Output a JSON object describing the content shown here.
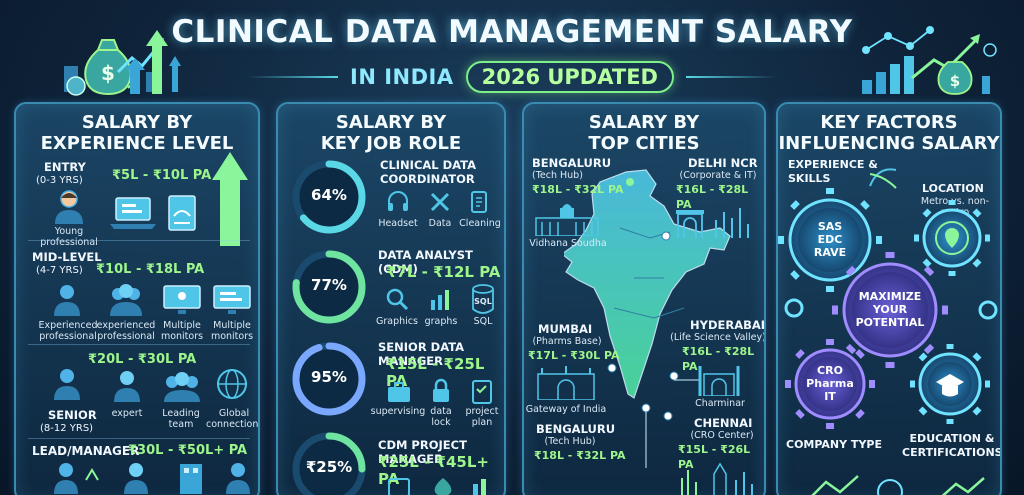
{
  "header": {
    "title": "CLINICAL DATA MANAGEMENT SALARY",
    "subtitle_left": "IN INDIA",
    "subtitle_badge": "2026 UPDATED"
  },
  "experience": {
    "title_line1": "SALARY BY",
    "title_line2": "EXPERIENCE LEVEL",
    "entry": {
      "label": "ENTRY",
      "years": "(0-3 YRS)",
      "salary": "₹5L - ₹10L PA",
      "icon_caption_1": "Young",
      "icon_caption_2": "professional"
    },
    "mid": {
      "label": "MID-LEVEL",
      "years": "(4-7 YRS)",
      "salary": "₹10L - ₹18L PA",
      "captions": [
        {
          "l1": "Experienced",
          "l2": "professional"
        },
        {
          "l1": "experienced",
          "l2": "professional"
        },
        {
          "l1": "Multiple",
          "l2": "monitors"
        },
        {
          "l1": "Multiple",
          "l2": "monitors"
        }
      ]
    },
    "senior": {
      "label": "SENIOR",
      "years": "(8-12 YRS)",
      "salary": "₹20L - ₹30L PA",
      "captions": [
        {
          "l1": "expert",
          "l2": ""
        },
        {
          "l1": "Leading",
          "l2": "team"
        },
        {
          "l1": "Global",
          "l2": "connections"
        }
      ]
    },
    "lead": {
      "label": "LEAD/MANAGER",
      "salary": "₹30L - ₹50L+ PA"
    }
  },
  "roles": {
    "title_line1": "SALARY BY",
    "title_line2": "KEY JOB ROLE",
    "items": [
      {
        "pct_label": "64%",
        "pct": 64,
        "name_l1": "CLINICAL DATA",
        "name_l2": "COORDINATOR",
        "salary": "",
        "icons": [
          "Headset",
          "Data",
          "Cleaning"
        ]
      },
      {
        "pct_label": "77%",
        "pct": 77,
        "name_l1": "DATA ANALYST (CDM)",
        "name_l2": "",
        "salary": "₹7L - ₹12L PA",
        "icons": [
          "Graphics",
          "graphs",
          "SQL"
        ]
      },
      {
        "pct_label": "95%",
        "pct": 95,
        "name_l1": "SENIOR DATA MANAGER",
        "name_l2": "",
        "salary": "₹15L - ₹25L PA",
        "icons": [
          "supervising",
          "data lock",
          "project plan"
        ]
      },
      {
        "pct_label": "₹25%",
        "pct": 25,
        "name_l1": "CDM PROJECT MANAGER",
        "name_l2": "",
        "salary": "₹25L - ₹45L+ PA",
        "icons": []
      }
    ],
    "sql_text": "SQL"
  },
  "cities": {
    "title_line1": "SALARY BY",
    "title_line2": "TOP CITIES",
    "bengaluru": {
      "name": "BENGALURU",
      "tag": "(Tech Hub)",
      "salary": "₹18L - ₹32L PA",
      "landmark": "Vidhana Soudha"
    },
    "delhi": {
      "name": "DELHI NCR",
      "tag": "(Corporate & IT)",
      "salary": "₹16L - ₹28L PA"
    },
    "mumbai": {
      "name": "MUMBAI",
      "tag": "(Pharms Base)",
      "salary": "₹17L - ₹30L PA",
      "landmark": "Gateway of India"
    },
    "hyderabad": {
      "name": "HYDERABAD",
      "tag": "(Life Science Valley)",
      "salary": "₹16L - ₹28L PA",
      "landmark": "Charminar"
    },
    "bengaluru2": {
      "name": "BENGALURU",
      "tag": "(Tech Hub)",
      "salary": "₹18L - ₹32L PA"
    },
    "chennai": {
      "name": "CHENNAI",
      "tag": "(CRO Center)",
      "salary": "₹15L - ₹26L PA"
    }
  },
  "factors": {
    "title_line1": "KEY FACTORS",
    "title_line2": "INFLUENCING SALARY",
    "experience_l1": "EXPERIENCE &",
    "experience_l2": "SKILLS",
    "skills_gear": [
      "SAS",
      "EDC",
      "RAVE"
    ],
    "location": "LOCATION",
    "location_sub": "Metro vs. non-metro",
    "center": [
      "MAXIMIZE",
      "YOUR",
      "POTENTIAL"
    ],
    "company_gear": [
      "CRO",
      "Pharma",
      "IT"
    ],
    "company_type": "COMPANY TYPE",
    "education_l1": "EDUCATION &",
    "education_l2": "CERTIFICATIONS"
  },
  "colors": {
    "accent_green": "#9df58b",
    "accent_cyan": "#5ad8e6",
    "panel_border": "#3a8bb0"
  }
}
